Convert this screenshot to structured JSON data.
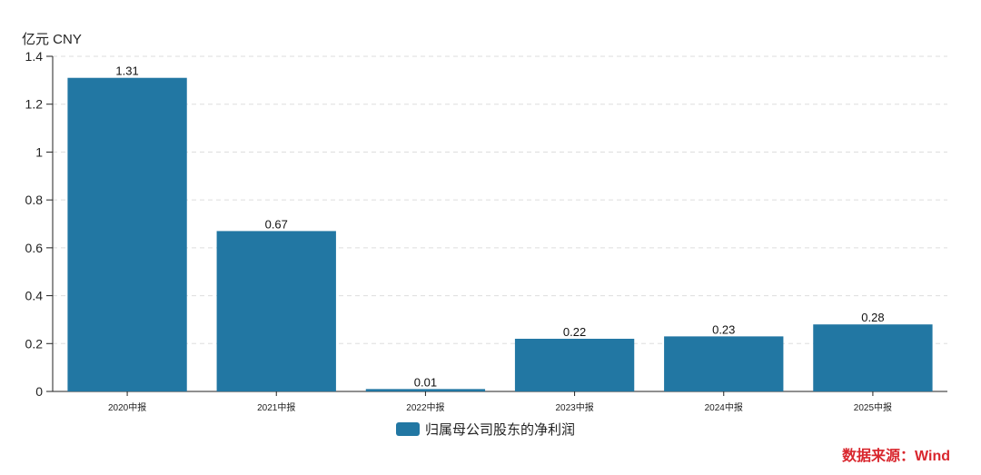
{
  "chart_data": {
    "type": "bar",
    "unit_label": "亿元  CNY",
    "categories": [
      "2020中报",
      "2021中报",
      "2022中报",
      "2023中报",
      "2024中报",
      "2025中报"
    ],
    "series": [
      {
        "name": "归属母公司股东的净利润",
        "values": [
          1.31,
          0.67,
          0.01,
          0.22,
          0.23,
          0.28
        ],
        "color": "#2277a3"
      }
    ],
    "data_labels": [
      "1.31",
      "0.67",
      "0.01",
      "0.22",
      "0.23",
      "0.28"
    ],
    "ylim": [
      0,
      1.4
    ],
    "yticks": [
      0,
      0.2,
      0.4,
      0.6,
      0.8,
      1,
      1.2,
      1.4
    ],
    "ytick_labels": [
      "0",
      "0.2",
      "0.4",
      "0.6",
      "0.8",
      "1",
      "1.2",
      "1.4"
    ],
    "grid": true,
    "legend_position": "bottom-center"
  },
  "source_text": "数据来源：Wind",
  "source_color": "#d9272e"
}
